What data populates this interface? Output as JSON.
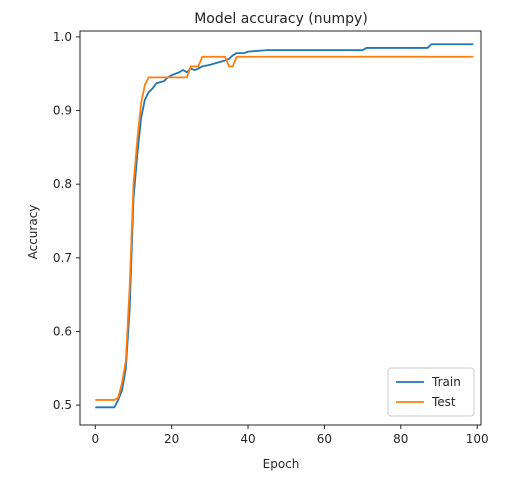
{
  "chart_data": {
    "type": "line",
    "title": "Model accuracy (numpy)",
    "xlabel": "Epoch",
    "ylabel": "Accuracy",
    "xlim": [
      -4,
      101
    ],
    "ylim": [
      0.473,
      1.008
    ],
    "xticks": [
      0,
      20,
      40,
      60,
      80,
      100
    ],
    "yticks": [
      0.5,
      0.6,
      0.7,
      0.8,
      0.9,
      1.0
    ],
    "ytick_labels": [
      "0.5",
      "0.6",
      "0.7",
      "0.8",
      "0.9",
      "1.0"
    ],
    "grid": false,
    "legend_position": "lower-right",
    "series": [
      {
        "name": "Train",
        "color": "#1f77b4",
        "points": [
          [
            0,
            0.497
          ],
          [
            5,
            0.497
          ],
          [
            6,
            0.507
          ],
          [
            7,
            0.52
          ],
          [
            8,
            0.55
          ],
          [
            9,
            0.63
          ],
          [
            10,
            0.78
          ],
          [
            11,
            0.84
          ],
          [
            12,
            0.89
          ],
          [
            13,
            0.915
          ],
          [
            14,
            0.925
          ],
          [
            15,
            0.93
          ],
          [
            16,
            0.937
          ],
          [
            18,
            0.94
          ],
          [
            19,
            0.945
          ],
          [
            20,
            0.948
          ],
          [
            22,
            0.952
          ],
          [
            23,
            0.955
          ],
          [
            24,
            0.952
          ],
          [
            25,
            0.957
          ],
          [
            26,
            0.955
          ],
          [
            27,
            0.957
          ],
          [
            28,
            0.96
          ],
          [
            30,
            0.962
          ],
          [
            32,
            0.965
          ],
          [
            34,
            0.968
          ],
          [
            35,
            0.97
          ],
          [
            36,
            0.975
          ],
          [
            37,
            0.978
          ],
          [
            39,
            0.978
          ],
          [
            40,
            0.98
          ],
          [
            45,
            0.982
          ],
          [
            50,
            0.982
          ],
          [
            60,
            0.982
          ],
          [
            70,
            0.982
          ],
          [
            71,
            0.985
          ],
          [
            80,
            0.985
          ],
          [
            87,
            0.985
          ],
          [
            88,
            0.99
          ],
          [
            95,
            0.99
          ],
          [
            99,
            0.99
          ]
        ]
      },
      {
        "name": "Test",
        "color": "#ff7f0e",
        "points": [
          [
            0,
            0.507
          ],
          [
            5,
            0.507
          ],
          [
            6,
            0.51
          ],
          [
            7,
            0.53
          ],
          [
            8,
            0.56
          ],
          [
            9,
            0.66
          ],
          [
            10,
            0.8
          ],
          [
            11,
            0.86
          ],
          [
            12,
            0.91
          ],
          [
            13,
            0.935
          ],
          [
            14,
            0.945
          ],
          [
            16,
            0.945
          ],
          [
            17,
            0.945
          ],
          [
            18,
            0.945
          ],
          [
            20,
            0.945
          ],
          [
            24,
            0.945
          ],
          [
            25,
            0.96
          ],
          [
            27,
            0.96
          ],
          [
            28,
            0.973
          ],
          [
            34,
            0.973
          ],
          [
            35,
            0.96
          ],
          [
            36,
            0.96
          ],
          [
            37,
            0.973
          ],
          [
            40,
            0.973
          ],
          [
            50,
            0.973
          ],
          [
            60,
            0.973
          ],
          [
            70,
            0.973
          ],
          [
            80,
            0.973
          ],
          [
            90,
            0.973
          ],
          [
            99,
            0.973
          ]
        ]
      }
    ]
  }
}
